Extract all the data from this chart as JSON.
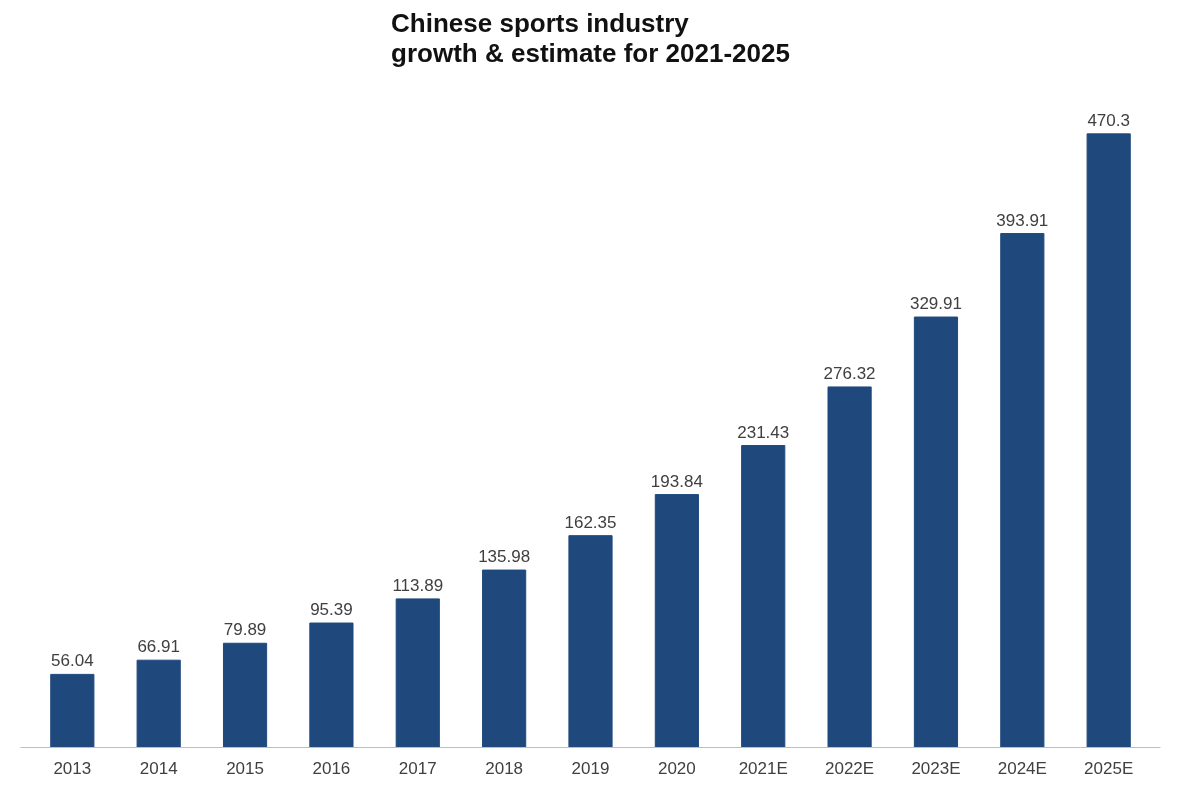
{
  "chart_data": {
    "type": "bar",
    "title": "Chinese sports industry\ngrowth & estimate for 2021-2025",
    "categories": [
      "2013",
      "2014",
      "2015",
      "2016",
      "2017",
      "2018",
      "2019",
      "2020",
      "2021E",
      "2022E",
      "2023E",
      "2024E",
      "2025E"
    ],
    "values": [
      56.04,
      66.91,
      79.89,
      95.39,
      113.89,
      135.98,
      162.35,
      193.84,
      231.43,
      276.32,
      329.91,
      393.91,
      470.3
    ],
    "color": "#1f497d",
    "data_labels": true
  }
}
